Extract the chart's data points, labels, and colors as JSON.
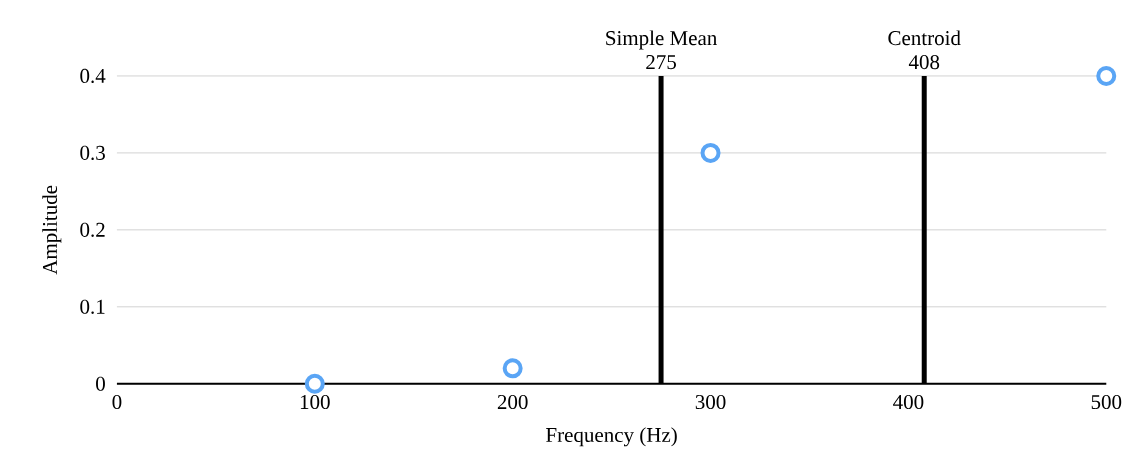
{
  "chart_data": {
    "type": "scatter",
    "xlabel": "Frequency (Hz)",
    "ylabel": "Amplitude",
    "x": [
      100,
      200,
      300,
      500
    ],
    "series": [
      {
        "color": "#5aa5f5",
        "values": [
          0,
          0.02,
          0.3,
          0.4
        ]
      }
    ],
    "xlim": [
      0,
      500
    ],
    "ylim": [
      0,
      0.4
    ],
    "xticks": [
      0,
      100,
      200,
      300,
      400,
      500
    ],
    "yticks": [
      0,
      0.1,
      0.2,
      0.3,
      0.4
    ],
    "ref_lines": [
      {
        "axis": "x",
        "value": 275,
        "label": "Simple Mean",
        "color": "#000000"
      },
      {
        "axis": "x",
        "value": 408,
        "label": "Centroid",
        "color": "#000000"
      }
    ],
    "annotations": [
      {
        "text": "275",
        "x": 275,
        "y": 0.4
      },
      {
        "text": "408",
        "x": 408,
        "y": 0.4
      }
    ],
    "grid": "y",
    "legend": false
  }
}
